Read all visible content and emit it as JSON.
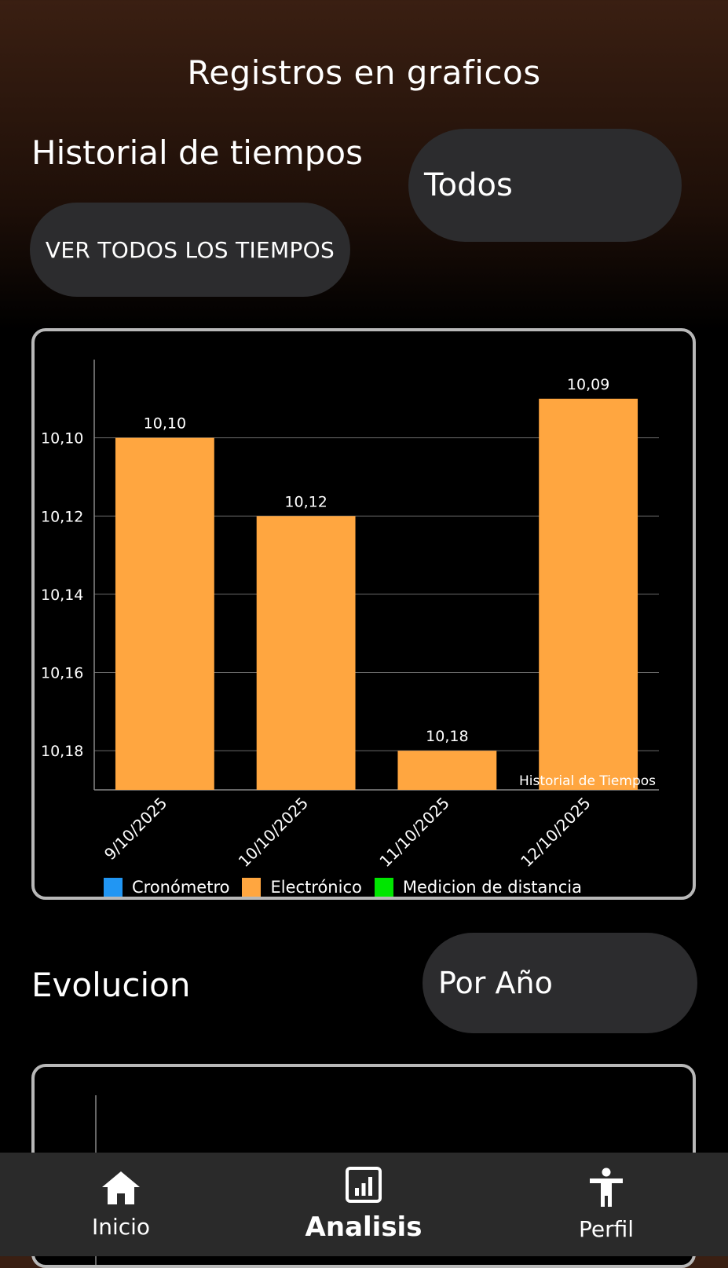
{
  "header": {
    "title": "Registros en graficos"
  },
  "historial": {
    "title": "Historial de tiempos",
    "filter_selected": "Todos",
    "ver_todos_label": "VER TODOS LOS TIEMPOS"
  },
  "chart_data": {
    "type": "bar",
    "categories": [
      "9/10/2025",
      "10/10/2025",
      "11/10/2025",
      "12/10/2025"
    ],
    "values": [
      10.1,
      10.12,
      10.18,
      10.09
    ],
    "value_labels": [
      "10,10",
      "10,12",
      "10,18",
      "10,09"
    ],
    "y_ticks": [
      "10,10",
      "10,12",
      "10,14",
      "10,16",
      "10,18"
    ],
    "y_tick_values": [
      10.1,
      10.12,
      10.14,
      10.16,
      10.18
    ],
    "ylim": [
      10.19,
      10.08
    ],
    "y_inverted": true,
    "grid": true,
    "watermark": "Historial de Tiempos",
    "series": [
      {
        "name": "Cronómetro",
        "color": "#2196f3"
      },
      {
        "name": "Electrónico",
        "color": "#ffa640"
      },
      {
        "name": "Medicion de distancia",
        "color": "#00e600"
      }
    ],
    "bar_color": "#ffa640"
  },
  "evolucion": {
    "title": "Evolucion",
    "filter_selected": "Por Año"
  },
  "nav": {
    "items": [
      {
        "label": "Inicio",
        "icon": "home-icon"
      },
      {
        "label": "Analisis",
        "icon": "bar-chart-icon"
      },
      {
        "label": "Perfil",
        "icon": "accessibility-icon"
      }
    ]
  }
}
